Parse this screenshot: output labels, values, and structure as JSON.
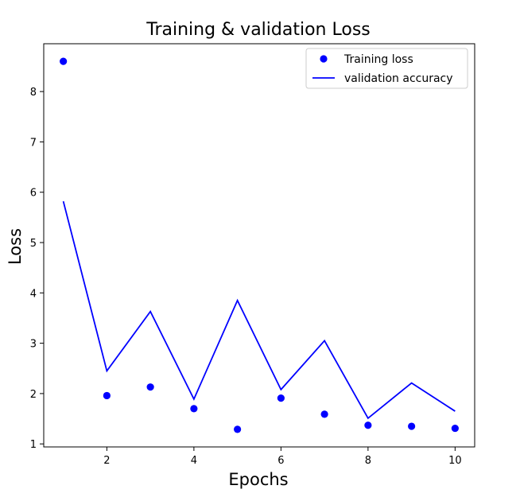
{
  "chart_data": {
    "type": "line",
    "title": "Training & validation Loss",
    "xlabel": "Epochs",
    "ylabel": "Loss",
    "x": [
      1,
      2,
      3,
      4,
      5,
      6,
      7,
      8,
      9,
      10
    ],
    "xlim": [
      0.55,
      10.45
    ],
    "ylim": [
      0.94,
      8.95
    ],
    "xticks": [
      2,
      4,
      6,
      8,
      10
    ],
    "yticks": [
      1,
      2,
      3,
      4,
      5,
      6,
      7,
      8
    ],
    "grid": false,
    "legend": "upper right",
    "series": [
      {
        "name": "Training loss",
        "style": "points",
        "color": "#0000ff",
        "values": [
          8.6,
          1.96,
          2.13,
          1.7,
          1.29,
          1.91,
          1.59,
          1.37,
          1.35,
          1.31
        ]
      },
      {
        "name": "validation accuracy",
        "style": "line",
        "color": "#0000ff",
        "values": [
          5.82,
          2.45,
          3.63,
          1.89,
          3.85,
          2.08,
          3.05,
          1.51,
          2.21,
          1.65
        ]
      }
    ]
  }
}
